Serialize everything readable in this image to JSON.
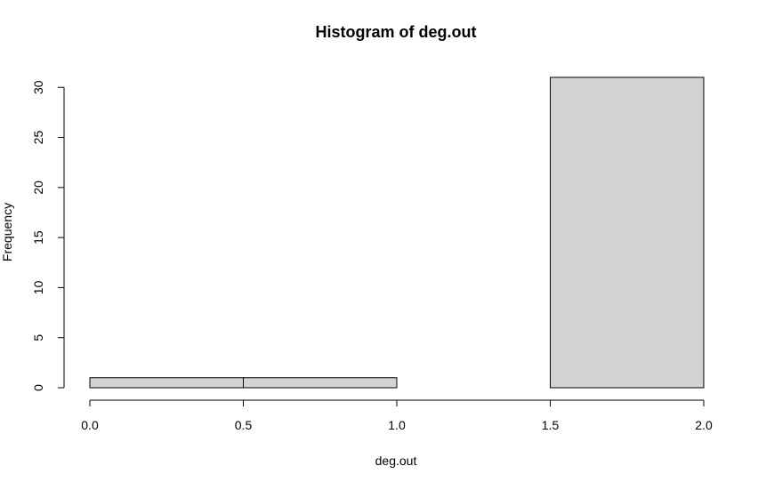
{
  "chart_data": {
    "type": "bar",
    "title": "Histogram of deg.out",
    "xlabel": "deg.out",
    "ylabel": "Frequency",
    "bins": [
      {
        "start": 0.0,
        "end": 0.5,
        "count": 1
      },
      {
        "start": 0.5,
        "end": 1.0,
        "count": 1
      },
      {
        "start": 1.0,
        "end": 1.5,
        "count": 0
      },
      {
        "start": 1.5,
        "end": 2.0,
        "count": 31
      }
    ],
    "xlim": [
      0,
      2
    ],
    "ylim": [
      0,
      31
    ],
    "x_ticks": [
      "0.0",
      "0.5",
      "1.0",
      "1.5",
      "2.0"
    ],
    "y_ticks": [
      "0",
      "5",
      "10",
      "15",
      "20",
      "25",
      "30"
    ],
    "bar_color": "#d3d3d3",
    "grid": false
  }
}
